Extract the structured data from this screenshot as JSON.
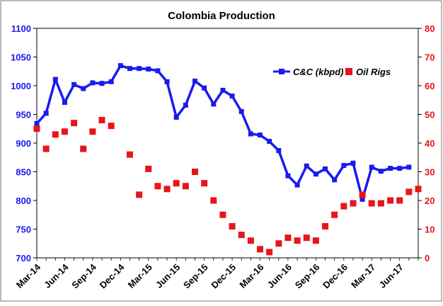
{
  "chart_data": {
    "type": "line",
    "title": "Colombia Production",
    "xlabel": "",
    "ylabel": "",
    "y2label": "",
    "ylim": [
      700,
      1100
    ],
    "y2lim": [
      0,
      80
    ],
    "yticks": [
      700,
      750,
      800,
      850,
      900,
      950,
      1000,
      1050,
      1100
    ],
    "y2ticks": [
      0,
      10,
      20,
      30,
      40,
      50,
      60,
      70,
      80
    ],
    "grid": false,
    "legend_position": "upper-right, inside plot",
    "x_tick_labels": [
      {
        "index": 0,
        "label": "Mar-14"
      },
      {
        "index": 3,
        "label": "Jun-14"
      },
      {
        "index": 6,
        "label": "Sep-14"
      },
      {
        "index": 9,
        "label": "Dec-14"
      },
      {
        "index": 12,
        "label": "Mar-15"
      },
      {
        "index": 15,
        "label": "Jun-15"
      },
      {
        "index": 18,
        "label": "Sep-15"
      },
      {
        "index": 21,
        "label": "Dec-15"
      },
      {
        "index": 24,
        "label": "Mar-16"
      },
      {
        "index": 27,
        "label": "Jun-16"
      },
      {
        "index": 30,
        "label": "Sep-16"
      },
      {
        "index": 33,
        "label": "Dec-16"
      },
      {
        "index": 36,
        "label": "Mar-17"
      },
      {
        "index": 39,
        "label": "Jun-17"
      }
    ],
    "months": [
      "Mar-14",
      "Apr-14",
      "May-14",
      "Jun-14",
      "Jul-14",
      "Aug-14",
      "Sep-14",
      "Oct-14",
      "Nov-14",
      "Dec-14",
      "Jan-15",
      "Feb-15",
      "Mar-15",
      "Apr-15",
      "May-15",
      "Jun-15",
      "Jul-15",
      "Aug-15",
      "Sep-15",
      "Oct-15",
      "Nov-15",
      "Dec-15",
      "Jan-16",
      "Feb-16",
      "Mar-16",
      "Apr-16",
      "May-16",
      "Jun-16",
      "Jul-16",
      "Aug-16",
      "Sep-16",
      "Oct-16",
      "Nov-16",
      "Dec-16",
      "Jan-17",
      "Feb-17",
      "Mar-17",
      "Apr-17",
      "May-17",
      "Jun-17",
      "Jul-17",
      "Aug-17"
    ],
    "series": [
      {
        "name": "C&C (kbpd)",
        "axis": "left",
        "style": "line-with-square-markers",
        "color": "#1a1aee",
        "values": [
          934,
          952,
          1011,
          971,
          1002,
          995,
          1005,
          1004,
          1007,
          1035,
          1030,
          1030,
          1029,
          1026,
          1007,
          945,
          966,
          1008,
          996,
          968,
          992,
          982,
          955,
          916,
          914,
          903,
          887,
          843,
          827,
          860,
          846,
          855,
          836,
          861,
          865,
          802,
          858,
          851,
          856,
          856,
          858,
          null
        ]
      },
      {
        "name": "Oil Rigs",
        "axis": "right",
        "style": "markers-only",
        "color": "#e8141b",
        "values": [
          45,
          38,
          43,
          44,
          47,
          38,
          44,
          48,
          46,
          null,
          36,
          22,
          31,
          25,
          24,
          26,
          25,
          30,
          26,
          20,
          15,
          11,
          8,
          6,
          3,
          2,
          5,
          7,
          6,
          7,
          6,
          11,
          15,
          18,
          19,
          22,
          19,
          19,
          20,
          20,
          23,
          24
        ]
      }
    ]
  },
  "colors": {
    "primary_series": "#1a1aee",
    "secondary_series": "#e8141b",
    "left_axis_text": "#1a1aee",
    "right_axis_text": "#e8141b",
    "frame": "#8c8c8c"
  }
}
